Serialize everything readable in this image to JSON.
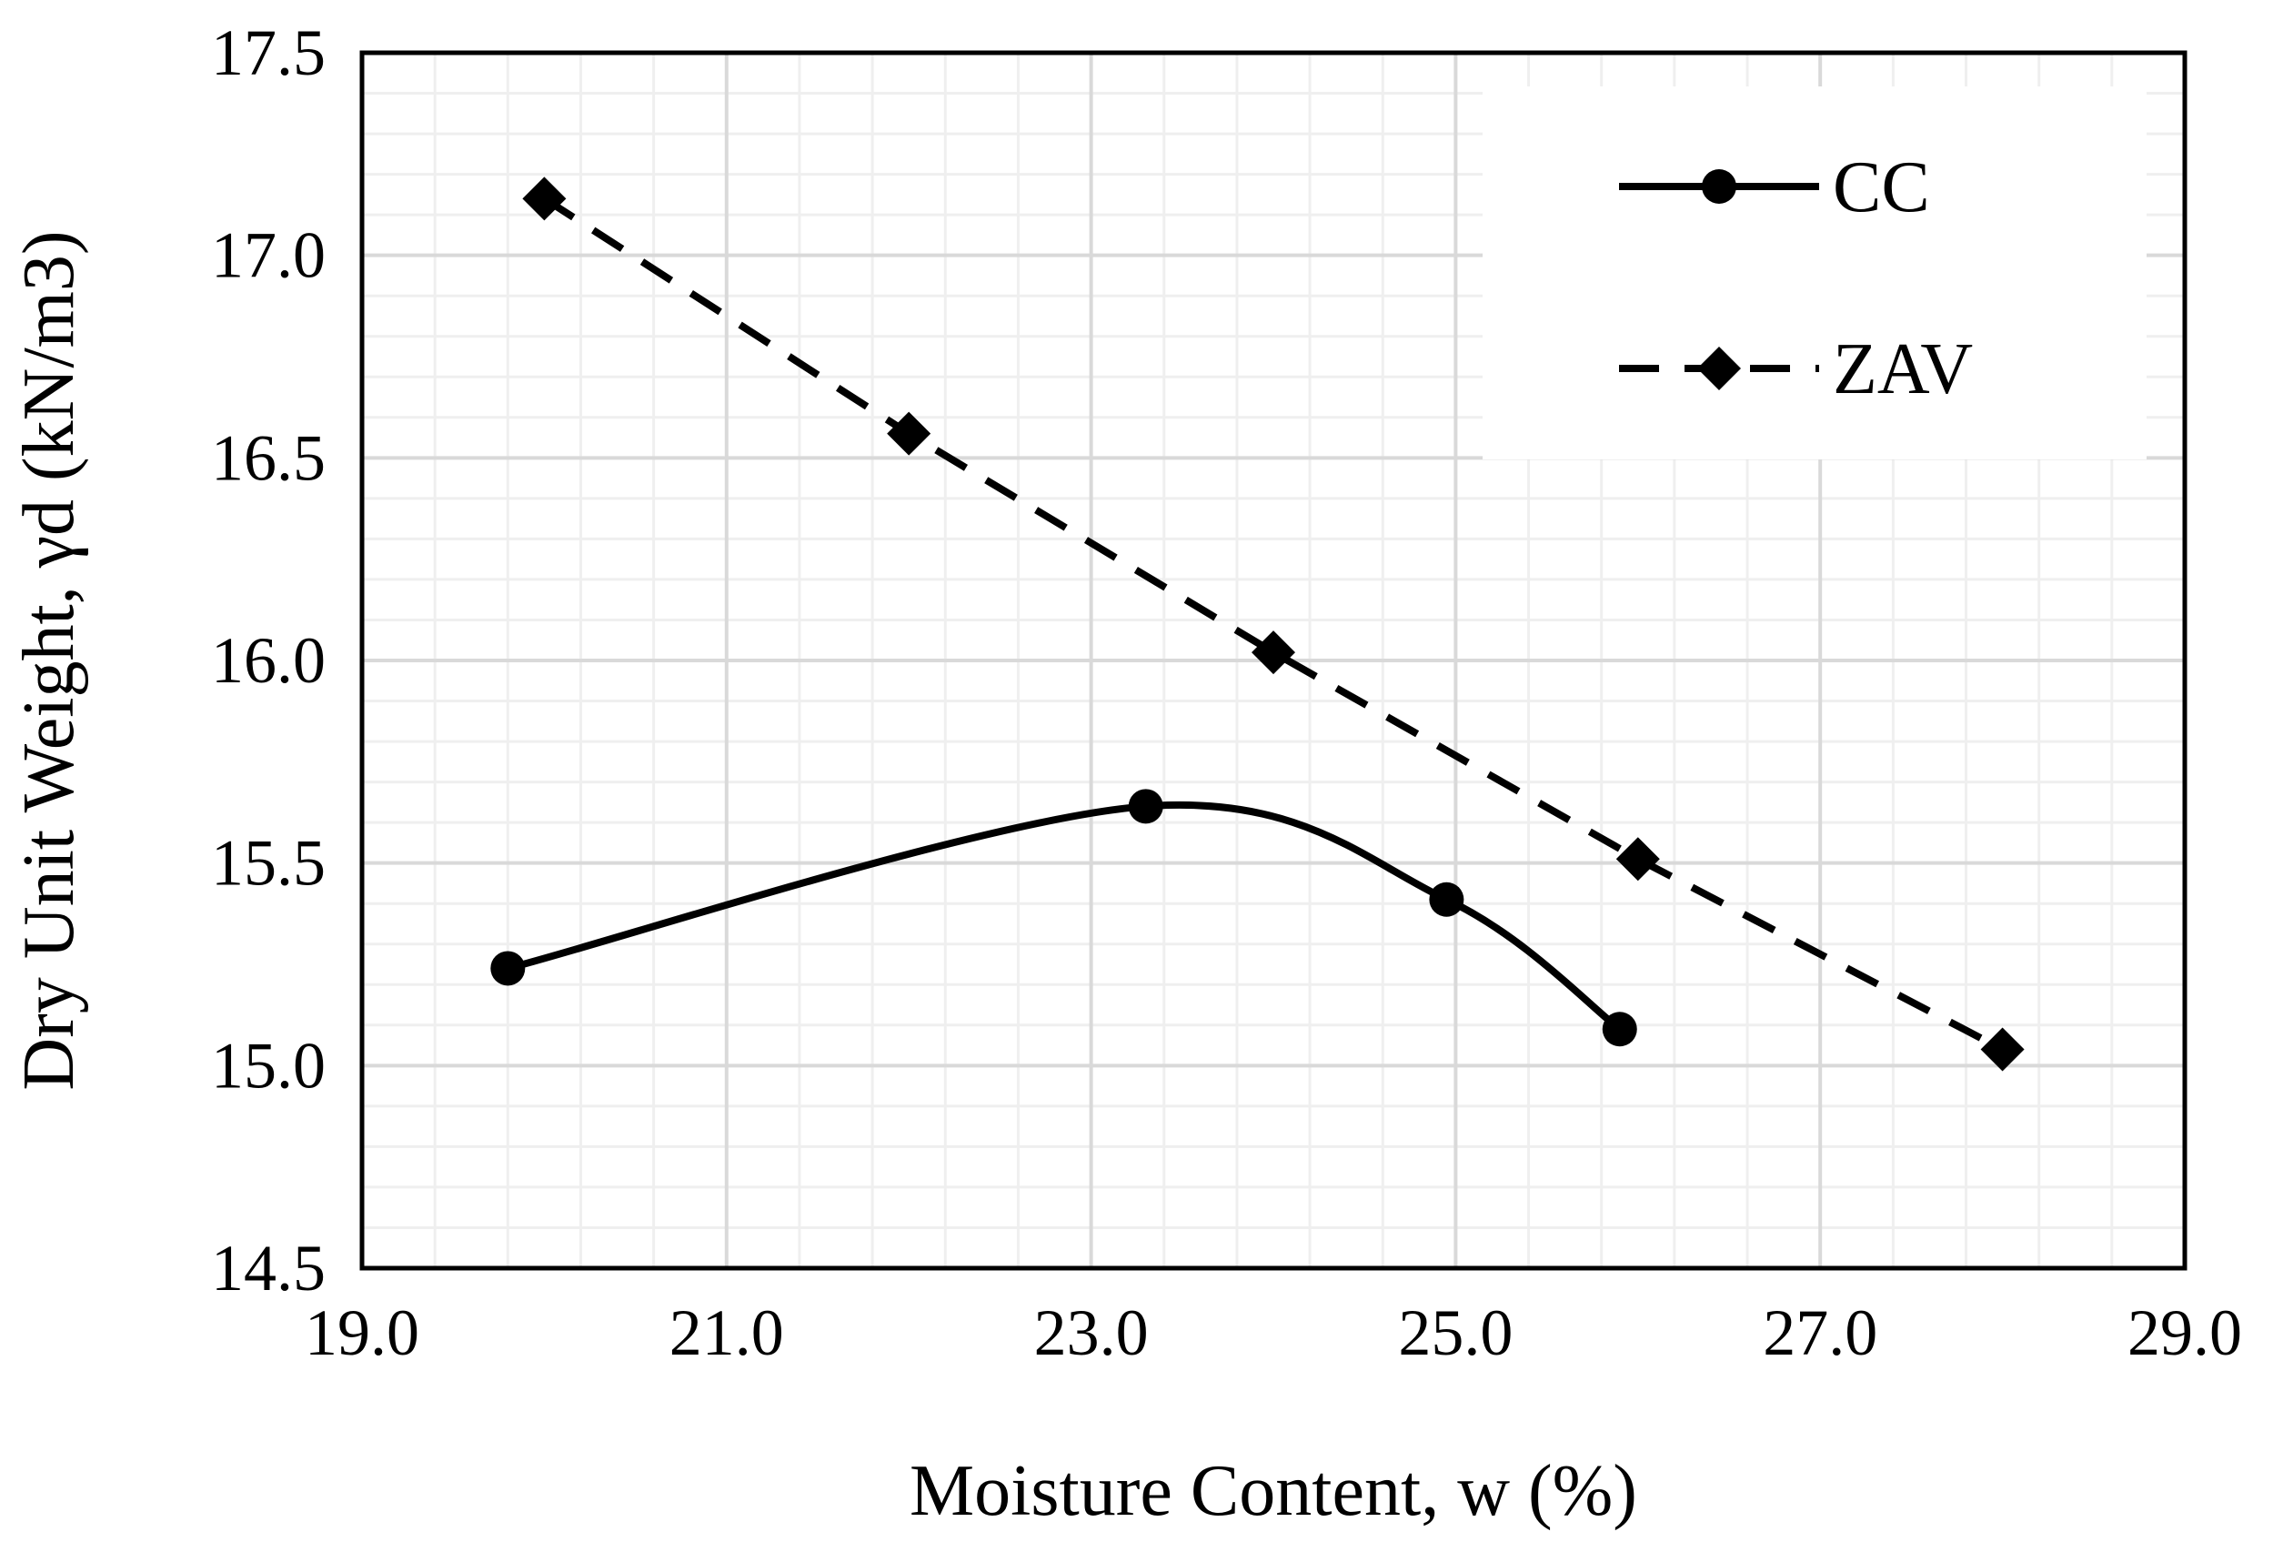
{
  "chart_data": {
    "type": "line",
    "xlabel": "Moisture Content, w (%)",
    "ylabel": "Dry Unit Weight, γd (kN/m3)",
    "xlim": [
      19.0,
      29.0
    ],
    "ylim": [
      14.5,
      17.5
    ],
    "xticks": [
      19.0,
      21.0,
      23.0,
      25.0,
      27.0,
      29.0
    ],
    "xtick_labels": [
      "19.0",
      "21.0",
      "23.0",
      "25.0",
      "27.0",
      "29.0"
    ],
    "yticks": [
      14.5,
      15.0,
      15.5,
      16.0,
      16.5,
      17.0,
      17.5
    ],
    "ytick_labels": [
      "14.5",
      "15.0",
      "15.5",
      "16.0",
      "16.5",
      "17.0",
      "17.5"
    ],
    "x_minor_step": 0.4,
    "y_minor_step": 0.1,
    "grid": true,
    "legend_position": "top-right",
    "series": [
      {
        "name": "CC",
        "style": "solid-smooth",
        "marker": "circle",
        "x": [
          19.8,
          23.3,
          24.95,
          25.9
        ],
        "y": [
          15.24,
          15.64,
          15.41,
          15.09
        ]
      },
      {
        "name": "ZAV",
        "style": "dashed",
        "marker": "diamond",
        "x": [
          20.0,
          22.0,
          24.0,
          26.0,
          28.0
        ],
        "y": [
          17.14,
          16.56,
          16.02,
          15.51,
          15.04
        ]
      }
    ]
  },
  "colors": {
    "line": "#000000",
    "major_grid": "#d9d9d9",
    "minor_grid": "#efefef",
    "background": "#ffffff"
  }
}
